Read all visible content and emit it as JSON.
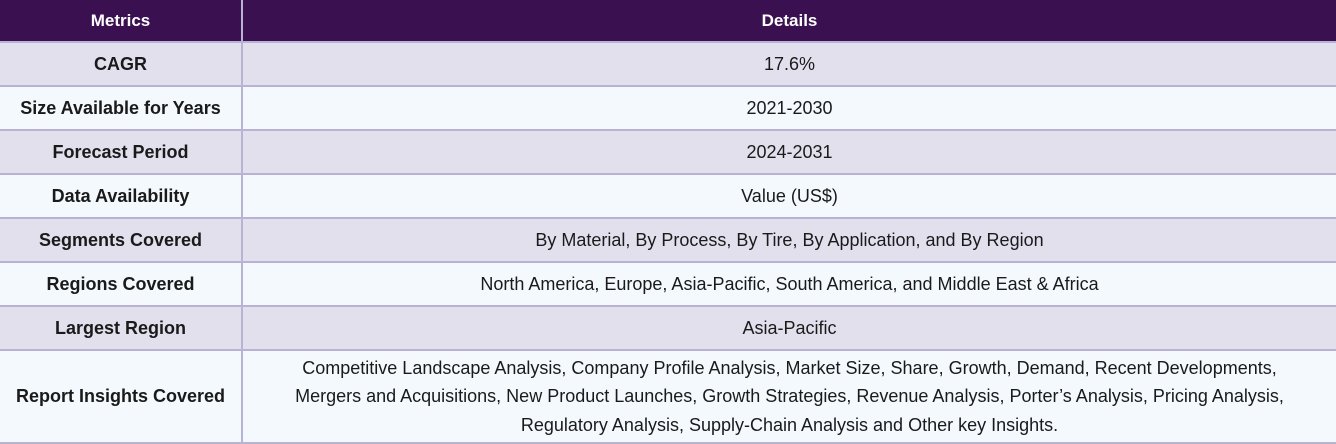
{
  "header": {
    "metrics_label": "Metrics",
    "details_label": "Details"
  },
  "rows": [
    {
      "metric": "CAGR",
      "details": "17.6%"
    },
    {
      "metric": "Size Available for Years",
      "details": "2021-2030"
    },
    {
      "metric": "Forecast Period",
      "details": "2024-2031"
    },
    {
      "metric": "Data Availability",
      "details": "Value (US$)"
    },
    {
      "metric": "Segments Covered",
      "details": "By Material, By Process, By Tire, By Application, and By Region"
    },
    {
      "metric": "Regions Covered",
      "details": "North America, Europe, Asia-Pacific, South America, and Middle East & Africa"
    },
    {
      "metric": "Largest Region",
      "details": "Asia-Pacific"
    },
    {
      "metric": "Report Insights Covered",
      "details_lines": [
        "Competitive Landscape Analysis, Company Profile Analysis, Market Size, Share, Growth, Demand, Recent Developments,",
        "Mergers and Acquisitions, New Product Launches, Growth Strategies, Revenue Analysis, Porter’s Analysis, Pricing Analysis,",
        "Regulatory Analysis, Supply-Chain Analysis and Other key Insights."
      ]
    }
  ]
}
